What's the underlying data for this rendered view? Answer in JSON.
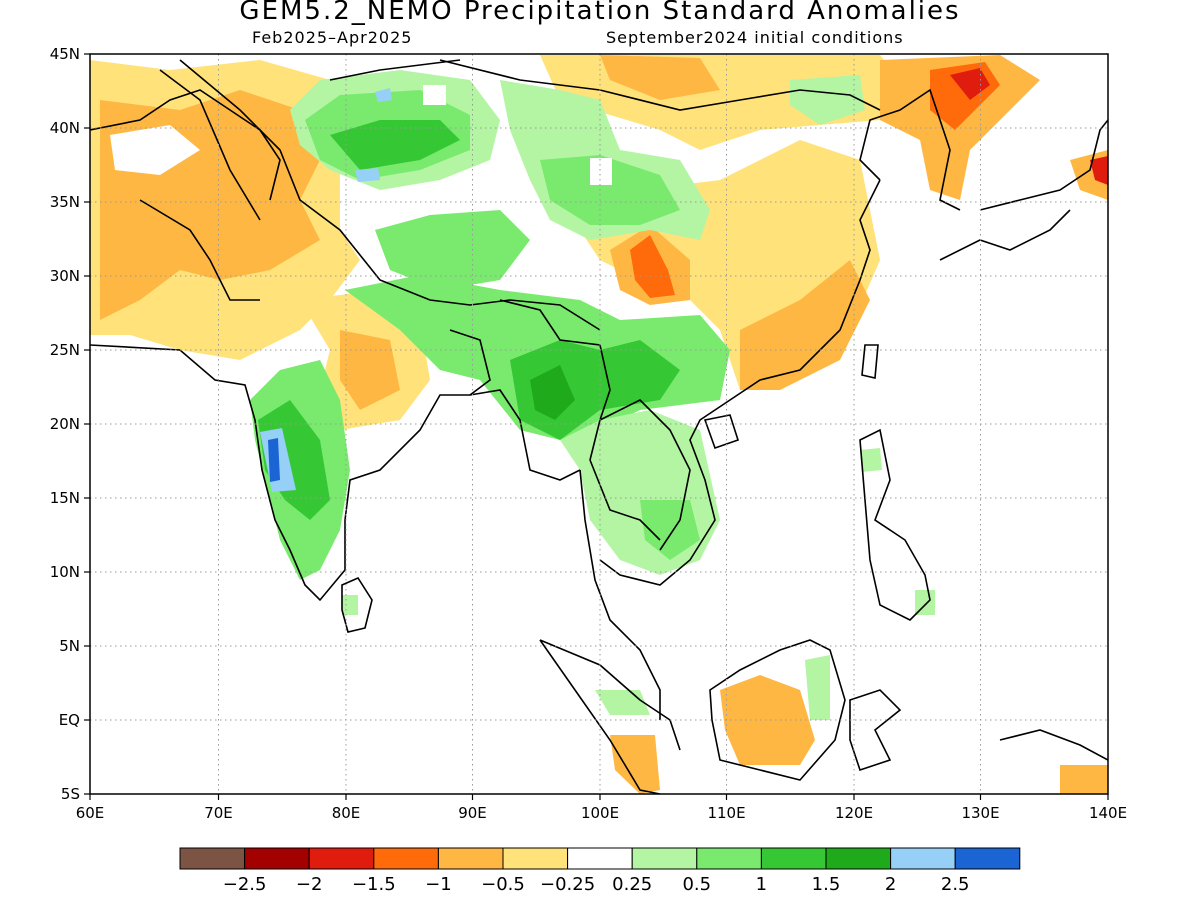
{
  "title": "GEM5.2_NEMO Precipitation Standard Anomalies",
  "subtitle_left": "Feb2025–Apr2025",
  "subtitle_right": "September2024 initial conditions",
  "axes": {
    "lon_labels": [
      "60E",
      "70E",
      "80E",
      "90E",
      "100E",
      "110E",
      "120E",
      "130E",
      "140E"
    ],
    "lat_labels": [
      "45N",
      "40N",
      "35N",
      "30N",
      "25N",
      "20N",
      "15N",
      "10N",
      "5N",
      "EQ",
      "5S"
    ],
    "lon_range": [
      60,
      140
    ],
    "lat_range": [
      -5,
      45
    ],
    "grid": "dotted"
  },
  "colorbar": {
    "colors": [
      "#7b5444",
      "#a30000",
      "#e01c0e",
      "#ff6a0a",
      "#ffb743",
      "#ffe27a",
      "#ffffff",
      "#b3f5a3",
      "#79ea6e",
      "#36c735",
      "#1faa1c",
      "#96d0f7",
      "#1a64d3"
    ],
    "labels": [
      "−2.5",
      "−2",
      "−1.5",
      "−1",
      "−0.5",
      "−0.25",
      "0.25",
      "0.5",
      "1",
      "1.5",
      "2",
      "2.5"
    ]
  }
}
